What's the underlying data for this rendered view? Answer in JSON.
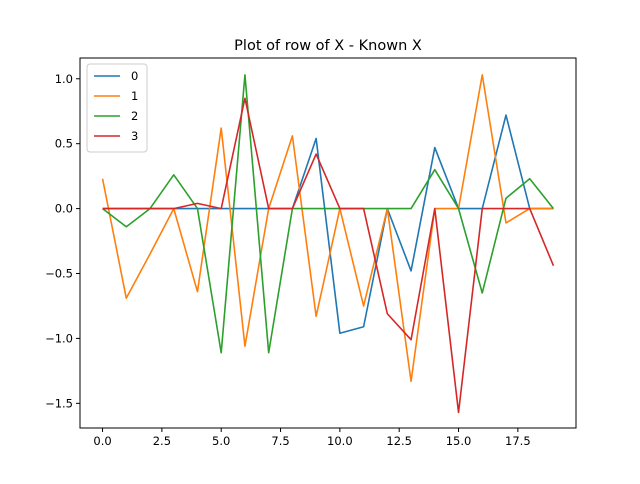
{
  "chart_data": {
    "type": "line",
    "title": "Plot of row of X - Known X",
    "xlabel": "",
    "ylabel": "",
    "xlim": [
      -0.95,
      19.95
    ],
    "ylim": [
      -1.69,
      1.16
    ],
    "xticks": [
      0.0,
      2.5,
      5.0,
      7.5,
      10.0,
      12.5,
      15.0,
      17.5
    ],
    "xtick_labels": [
      "0.0",
      "2.5",
      "5.0",
      "7.5",
      "10.0",
      "12.5",
      "15.0",
      "17.5"
    ],
    "yticks": [
      1.0,
      0.5,
      0.0,
      -0.5,
      -1.0,
      -1.5
    ],
    "ytick_labels": [
      "1.0",
      "0.5",
      "0.0",
      "−0.5",
      "−1.0",
      "−1.5"
    ],
    "grid": false,
    "legend_position": "top-left",
    "x": [
      0,
      1,
      2,
      3,
      4,
      5,
      6,
      7,
      8,
      9,
      10,
      11,
      12,
      13,
      14,
      15,
      16,
      17,
      18,
      19
    ],
    "series": [
      {
        "name": "0",
        "color": "#1f77b4",
        "values": [
          0,
          0,
          0,
          0,
          0,
          0,
          0,
          0,
          0,
          0.54,
          -0.96,
          -0.91,
          0,
          -0.48,
          0.47,
          0,
          0,
          0.72,
          0,
          0
        ]
      },
      {
        "name": "1",
        "color": "#ff7f0e",
        "values": [
          0.23,
          -0.69,
          -0.35,
          0,
          -0.64,
          0.62,
          -1.06,
          0,
          0.56,
          -0.83,
          0,
          -0.75,
          0,
          -1.33,
          0,
          0,
          1.03,
          -0.11,
          0,
          0
        ]
      },
      {
        "name": "2",
        "color": "#2ca02c",
        "values": [
          0,
          -0.14,
          0,
          0.26,
          0,
          -1.11,
          1.03,
          -1.11,
          0,
          0,
          0,
          0,
          0,
          0,
          0.3,
          0,
          -0.65,
          0.08,
          0.23,
          0
        ]
      },
      {
        "name": "3",
        "color": "#d62728",
        "values": [
          0,
          0,
          0,
          0,
          0.04,
          0,
          0.85,
          0,
          0,
          0.42,
          0,
          0,
          -0.81,
          -1.01,
          0,
          -1.57,
          0,
          0,
          0,
          -0.44
        ]
      }
    ]
  }
}
